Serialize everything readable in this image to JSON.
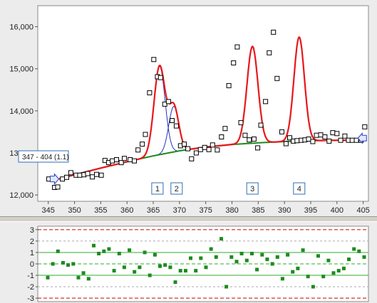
{
  "chart_data": [
    {
      "type": "scatter",
      "title": "",
      "xlabel": "",
      "ylabel": "",
      "xlim": [
        343,
        406
      ],
      "ylim": [
        11850,
        16500
      ],
      "grid": false,
      "x_ticks": [
        345,
        350,
        355,
        360,
        365,
        370,
        375,
        380,
        385,
        390,
        395,
        400,
        405
      ],
      "y_ticks": [
        {
          "value": 12000,
          "label": "12,000"
        },
        {
          "value": 13000,
          "label": "13,000"
        },
        {
          "value": 14000,
          "label": "14,000"
        },
        {
          "value": 15000,
          "label": "15,000"
        },
        {
          "value": 16000,
          "label": "16,000"
        }
      ],
      "range_label": "347 - 404 (1.1)",
      "range": [
        347,
        404
      ],
      "colors": {
        "fit": "#e8171b",
        "baseline": "#1b8a1b",
        "component": "#2233bb",
        "points": "#000000"
      },
      "baseline": {
        "x": [
          347,
          350,
          355,
          360,
          365,
          370,
          375,
          380,
          385,
          390,
          395,
          400,
          404
        ],
        "y": [
          12380,
          12480,
          12640,
          12790,
          12930,
          13050,
          13140,
          13200,
          13240,
          13270,
          13290,
          13300,
          13300
        ]
      },
      "peaks": [
        {
          "label": "1",
          "center": 366.2,
          "height": 2100,
          "sigma": 1.05
        },
        {
          "label": "2",
          "center": 368.9,
          "height": 1080,
          "sigma": 0.95
        },
        {
          "label": "3",
          "center": 383.9,
          "height": 2300,
          "sigma": 1.05
        },
        {
          "label": "4",
          "center": 392.8,
          "height": 2470,
          "sigma": 1.0
        }
      ],
      "series": [
        {
          "x": [
            345.1,
            346.2,
            346.8,
            347.7,
            348.5,
            349.3,
            350.3,
            351.0,
            351.8,
            352.5,
            353.4,
            354.2,
            355.1,
            355.8,
            356.5,
            357.2,
            358.0,
            358.9,
            359.5,
            360.6,
            361.4,
            362.1,
            362.9,
            363.5,
            364.3,
            365.1,
            365.8,
            366.4,
            367.2,
            367.9,
            368.6,
            369.4,
            370.2,
            370.9,
            371.6,
            372.3,
            373.2,
            374.0,
            374.8,
            375.6,
            376.3,
            377.2,
            378.0,
            378.7,
            379.4,
            380.3,
            381.0,
            381.7,
            382.5,
            383.3,
            384.2,
            384.9,
            385.5,
            386.4,
            387.1,
            387.9,
            388.6,
            389.5,
            390.3,
            391.0,
            391.7,
            392.4,
            393.2,
            393.9,
            394.6,
            395.4,
            396.1,
            396.9,
            397.7,
            398.5,
            399.2,
            400.0,
            400.7,
            401.5,
            402.2,
            402.9,
            403.7,
            404.6,
            405.3
          ],
          "y": [
            12380,
            12180,
            12190,
            12380,
            12420,
            12530,
            12470,
            12470,
            12480,
            12510,
            12430,
            12490,
            12470,
            12820,
            12770,
            12810,
            12840,
            12770,
            12870,
            12840,
            12810,
            13070,
            13210,
            13440,
            14430,
            15220,
            14810,
            14790,
            14160,
            14220,
            13770,
            13640,
            13170,
            13210,
            13100,
            12860,
            13000,
            13080,
            13130,
            13080,
            13190,
            13070,
            13380,
            13580,
            14600,
            15140,
            15520,
            13720,
            13420,
            13310,
            13330,
            13120,
            13660,
            14220,
            15380,
            15870,
            14770,
            13500,
            13220,
            13360,
            13280,
            13290,
            13300,
            13310,
            13330,
            13270,
            13420,
            13430,
            13380,
            13280,
            13480,
            13460,
            13300,
            13400,
            13300,
            13300,
            13300,
            13300,
            13620
          ]
        }
      ]
    },
    {
      "type": "scatter",
      "title": "",
      "xlabel": "",
      "ylabel": "",
      "ylim": [
        -3.3,
        3.3
      ],
      "y_ticks": [
        3,
        2,
        1,
        0,
        -1,
        -2,
        -3
      ],
      "reference_lines": [
        {
          "y": 3,
          "color": "#cc0000",
          "style": "dashed"
        },
        {
          "y": 1,
          "color": "#2fae2f",
          "style": "solid"
        },
        {
          "y": 0,
          "color": "#2fae2f",
          "style": "dashed"
        },
        {
          "y": -1,
          "color": "#2fae2f",
          "style": "solid"
        },
        {
          "y": -3,
          "color": "#cc0000",
          "style": "dashed"
        }
      ],
      "colors": {
        "points": "#1f8a1f",
        "grid": "#aaaaaa"
      },
      "series": [
        {
          "values": [
            -1.2,
            0.0,
            1.1,
            0.1,
            -0.1,
            0.0,
            -1.2,
            -0.8,
            -1.3,
            1.6,
            0.9,
            1.1,
            1.3,
            -0.6,
            0.9,
            -0.3,
            1.2,
            -0.7,
            -0.3,
            1.0,
            -1.0,
            0.8,
            -0.2,
            -0.1,
            -0.3,
            -1.6,
            -0.6,
            -0.6,
            0.5,
            -0.6,
            0.5,
            -0.3,
            1.3,
            0.6,
            2.2,
            -2.0,
            0.6,
            0.2,
            0.9,
            0.3,
            0.9,
            -0.5,
            0.8,
            0.4,
            0.0,
            0.6,
            -1.3,
            0.8,
            -0.7,
            -0.4,
            1.2,
            -1.1,
            -2.0,
            0.7,
            -1.1,
            0.3,
            -0.8,
            -0.6,
            -0.4,
            0.4,
            1.3,
            1.1,
            0.6
          ]
        }
      ]
    }
  ]
}
